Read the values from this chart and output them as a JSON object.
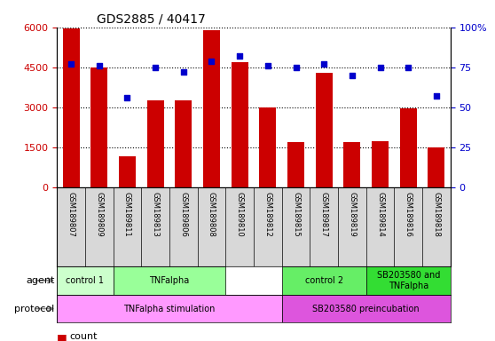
{
  "title": "GDS2885 / 40417",
  "samples": [
    "GSM189807",
    "GSM189809",
    "GSM189811",
    "GSM189813",
    "GSM189806",
    "GSM189808",
    "GSM189810",
    "GSM189812",
    "GSM189815",
    "GSM189817",
    "GSM189819",
    "GSM189814",
    "GSM189816",
    "GSM189818"
  ],
  "counts": [
    5950,
    4480,
    1180,
    3250,
    3280,
    5900,
    4700,
    3000,
    1700,
    4300,
    1700,
    1750,
    2950,
    1500
  ],
  "percentiles": [
    77,
    76,
    56,
    75,
    72,
    79,
    82,
    76,
    75,
    77,
    70,
    75,
    75,
    57
  ],
  "bar_color": "#cc0000",
  "dot_color": "#0000cc",
  "ylim_left": [
    0,
    6000
  ],
  "ylim_right": [
    0,
    100
  ],
  "yticks_left": [
    0,
    1500,
    3000,
    4500,
    6000
  ],
  "yticks_right": [
    0,
    25,
    50,
    75,
    100
  ],
  "agent_spans": [
    {
      "start": 0,
      "end": 1,
      "color": "#ccffcc",
      "label": "control 1"
    },
    {
      "start": 2,
      "end": 5,
      "color": "#99ff99",
      "label": "TNFalpha"
    },
    {
      "start": 8,
      "end": 10,
      "color": "#66ee66",
      "label": "control 2"
    },
    {
      "start": 11,
      "end": 13,
      "color": "#33dd33",
      "label": "SB203580 and\nTNFalpha"
    }
  ],
  "protocol_spans": [
    {
      "start": 0,
      "end": 7,
      "color": "#ff99ff",
      "label": "TNFalpha stimulation"
    },
    {
      "start": 8,
      "end": 13,
      "color": "#dd55dd",
      "label": "SB203580 preincubation"
    }
  ],
  "bg_color": "#ffffff",
  "label_bg_color": "#d8d8d8"
}
